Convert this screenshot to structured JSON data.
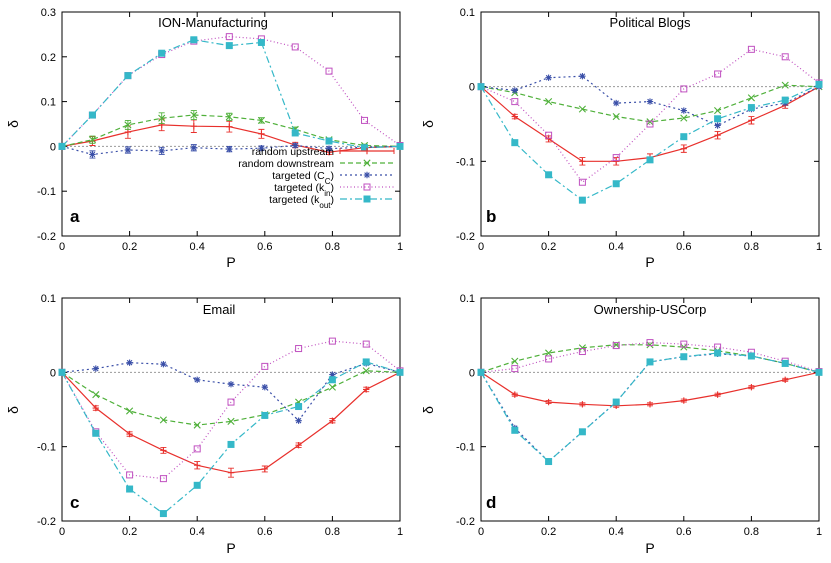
{
  "colors": {
    "random_upstream": "#e8302c",
    "random_downstream": "#4fb03a",
    "targeted_cc": "#3a4fa8",
    "targeted_kin": "#c050c0",
    "targeted_kout": "#35b8c8",
    "zero_line": "#9a9a9a"
  },
  "legend": {
    "entries": [
      {
        "key": "random_upstream",
        "label": "random upstream"
      },
      {
        "key": "random_downstream",
        "label": "random downstream"
      },
      {
        "key": "targeted_cc",
        "prefix": "targeted (C",
        "sub": "C",
        "suffix": ")"
      },
      {
        "key": "targeted_kin",
        "prefix": "targeted (k",
        "sub": "in",
        "suffix": ")"
      },
      {
        "key": "targeted_kout",
        "prefix": "targeted (k",
        "sub": "out",
        "suffix": ")"
      }
    ]
  },
  "chart_data": [
    {
      "type": "line",
      "letter": "a",
      "title": "ION-Manufacturing",
      "xlabel": "P",
      "ylabel": "δ",
      "xlim": [
        0,
        1
      ],
      "ylim": [
        -0.2,
        0.3
      ],
      "xticks": [
        "0",
        "0.2",
        "0.4",
        "0.6",
        "0.8",
        "1"
      ],
      "xtick_values": [
        0,
        0.2,
        0.4,
        0.6,
        0.8,
        1
      ],
      "yticks": [
        "-0.2",
        "-0.1",
        "0",
        "0.1",
        "0.2",
        "0.3"
      ],
      "ytick_values": [
        -0.2,
        -0.1,
        0,
        0.1,
        0.2,
        0.3
      ],
      "series": [
        {
          "key": "random_upstream",
          "name": "random upstream",
          "x": [
            0,
            0.09,
            0.195,
            0.295,
            0.39,
            0.495,
            0.59,
            0.69,
            0.79,
            0.895,
            1
          ],
          "y": [
            0,
            0.012,
            0.032,
            0.048,
            0.045,
            0.044,
            0.028,
            0.003,
            -0.013,
            -0.003,
            0
          ],
          "err": [
            0,
            0.01,
            0.014,
            0.013,
            0.014,
            0.012,
            0.01,
            0.006,
            0.005,
            0.004,
            0
          ]
        },
        {
          "key": "random_downstream",
          "name": "random downstream",
          "x": [
            0,
            0.09,
            0.195,
            0.295,
            0.39,
            0.495,
            0.59,
            0.69,
            0.79,
            0.895,
            1
          ],
          "y": [
            0,
            0.015,
            0.048,
            0.063,
            0.07,
            0.066,
            0.058,
            0.038,
            0.015,
            0.002,
            0
          ],
          "err": [
            0,
            0.008,
            0.01,
            0.012,
            0.01,
            0.008,
            0.006,
            0.005,
            0.004,
            0.003,
            0
          ]
        },
        {
          "key": "targeted_cc",
          "name": "targeted (Cc)",
          "x": [
            0,
            0.09,
            0.195,
            0.295,
            0.39,
            0.495,
            0.59,
            0.69,
            0.79,
            0.895,
            1
          ],
          "y": [
            0,
            -0.018,
            -0.008,
            -0.01,
            -0.003,
            -0.006,
            -0.004,
            0.002,
            -0.005,
            -0.002,
            0
          ],
          "err": [
            0,
            0.008,
            0.007,
            0.008,
            0.007,
            0.006,
            0.005,
            0.004,
            0.004,
            0.003,
            0
          ]
        },
        {
          "key": "targeted_kin",
          "name": "targeted (kin)",
          "x": [
            0,
            0.09,
            0.195,
            0.295,
            0.39,
            0.495,
            0.59,
            0.69,
            0.79,
            0.895,
            1
          ],
          "y": [
            0,
            0.07,
            0.158,
            0.205,
            0.235,
            0.245,
            0.24,
            0.222,
            0.168,
            0.058,
            0.002
          ],
          "err": null
        },
        {
          "key": "targeted_kout",
          "name": "targeted (kout)",
          "x": [
            0,
            0.09,
            0.195,
            0.295,
            0.39,
            0.495,
            0.59,
            0.69,
            0.79,
            0.895,
            1
          ],
          "y": [
            0,
            0.07,
            0.158,
            0.208,
            0.238,
            0.225,
            0.232,
            0.03,
            0.012,
            -0.003,
            0
          ],
          "err": null
        }
      ]
    },
    {
      "type": "line",
      "letter": "b",
      "title": "Political Blogs",
      "xlabel": "P",
      "ylabel": "δ",
      "xlim": [
        0,
        1
      ],
      "ylim": [
        -0.2,
        0.1
      ],
      "xticks": [
        "0",
        "0.2",
        "0.4",
        "0.6",
        "0.8",
        "1"
      ],
      "xtick_values": [
        0,
        0.2,
        0.4,
        0.6,
        0.8,
        1
      ],
      "yticks": [
        "-0.2",
        "-0.1",
        "0",
        "0.1"
      ],
      "ytick_values": [
        -0.2,
        -0.1,
        0,
        0.1
      ],
      "series": [
        {
          "key": "random_upstream",
          "name": "random upstream",
          "x": [
            0,
            0.1,
            0.2,
            0.3,
            0.4,
            0.5,
            0.6,
            0.7,
            0.8,
            0.9,
            1
          ],
          "y": [
            0,
            -0.04,
            -0.07,
            -0.1,
            -0.1,
            -0.095,
            -0.083,
            -0.065,
            -0.045,
            -0.025,
            0
          ],
          "err": [
            0,
            0.003,
            0.004,
            0.005,
            0.005,
            0.005,
            0.005,
            0.005,
            0.005,
            0.004,
            0
          ]
        },
        {
          "key": "random_downstream",
          "name": "random downstream",
          "x": [
            0,
            0.1,
            0.2,
            0.3,
            0.4,
            0.5,
            0.6,
            0.7,
            0.8,
            0.9,
            1
          ],
          "y": [
            0,
            -0.008,
            -0.02,
            -0.03,
            -0.04,
            -0.047,
            -0.042,
            -0.032,
            -0.015,
            0.002,
            0
          ],
          "err": null
        },
        {
          "key": "targeted_cc",
          "name": "targeted (Cc)",
          "x": [
            0,
            0.1,
            0.2,
            0.3,
            0.4,
            0.5,
            0.6,
            0.7,
            0.8,
            0.9,
            1
          ],
          "y": [
            0,
            -0.005,
            0.012,
            0.014,
            -0.022,
            -0.02,
            -0.032,
            -0.052,
            -0.03,
            -0.022,
            0
          ],
          "err": null
        },
        {
          "key": "targeted_kin",
          "name": "targeted (kin)",
          "x": [
            0,
            0.1,
            0.2,
            0.3,
            0.4,
            0.5,
            0.6,
            0.7,
            0.8,
            0.9,
            1
          ],
          "y": [
            0,
            -0.02,
            -0.065,
            -0.128,
            -0.095,
            -0.05,
            -0.003,
            0.017,
            0.05,
            0.04,
            0.005
          ],
          "err": null
        },
        {
          "key": "targeted_kout",
          "name": "targeted (kout)",
          "x": [
            0,
            0.1,
            0.2,
            0.3,
            0.4,
            0.5,
            0.6,
            0.7,
            0.8,
            0.9,
            1
          ],
          "y": [
            0,
            -0.075,
            -0.118,
            -0.152,
            -0.13,
            -0.098,
            -0.067,
            -0.043,
            -0.028,
            -0.018,
            0.003
          ],
          "err": null
        }
      ]
    },
    {
      "type": "line",
      "letter": "c",
      "title": "Email",
      "xlabel": "P",
      "ylabel": "δ",
      "xlim": [
        0,
        1
      ],
      "ylim": [
        -0.2,
        0.1
      ],
      "xticks": [
        "0",
        "0.2",
        "0.4",
        "0.6",
        "0.8",
        "1"
      ],
      "xtick_values": [
        0,
        0.2,
        0.4,
        0.6,
        0.8,
        1
      ],
      "yticks": [
        "-0.2",
        "-0.1",
        "0",
        "0.1"
      ],
      "ytick_values": [
        -0.2,
        -0.1,
        0,
        0.1
      ],
      "series": [
        {
          "key": "random_upstream",
          "name": "random upstream",
          "x": [
            0,
            0.1,
            0.2,
            0.3,
            0.4,
            0.5,
            0.6,
            0.7,
            0.8,
            0.9,
            1
          ],
          "y": [
            0,
            -0.048,
            -0.083,
            -0.105,
            -0.125,
            -0.135,
            -0.13,
            -0.098,
            -0.065,
            -0.023,
            0
          ],
          "err": [
            0,
            0.003,
            0.003,
            0.004,
            0.005,
            0.006,
            0.004,
            0.003,
            0.003,
            0.003,
            0
          ]
        },
        {
          "key": "random_downstream",
          "name": "random downstream",
          "x": [
            0,
            0.1,
            0.2,
            0.3,
            0.4,
            0.5,
            0.6,
            0.7,
            0.8,
            0.9,
            1
          ],
          "y": [
            0,
            -0.03,
            -0.052,
            -0.064,
            -0.071,
            -0.066,
            -0.057,
            -0.04,
            -0.02,
            0.002,
            0
          ],
          "err": null
        },
        {
          "key": "targeted_cc",
          "name": "targeted (Cc)",
          "x": [
            0,
            0.1,
            0.2,
            0.3,
            0.4,
            0.5,
            0.6,
            0.7,
            0.8,
            0.9,
            1
          ],
          "y": [
            0,
            0.005,
            0.013,
            0.011,
            -0.01,
            -0.016,
            -0.02,
            -0.065,
            -0.003,
            0.012,
            0
          ],
          "err": null
        },
        {
          "key": "targeted_kin",
          "name": "targeted (kin)",
          "x": [
            0,
            0.1,
            0.2,
            0.3,
            0.4,
            0.5,
            0.6,
            0.7,
            0.8,
            0.9,
            1
          ],
          "y": [
            0,
            -0.08,
            -0.138,
            -0.143,
            -0.103,
            -0.04,
            0.008,
            0.032,
            0.042,
            0.038,
            0.002
          ],
          "err": null
        },
        {
          "key": "targeted_kout",
          "name": "targeted (kout)",
          "x": [
            0,
            0.1,
            0.2,
            0.3,
            0.4,
            0.5,
            0.6,
            0.7,
            0.8,
            0.9,
            1
          ],
          "y": [
            0,
            -0.082,
            -0.157,
            -0.19,
            -0.152,
            -0.097,
            -0.058,
            -0.046,
            -0.01,
            0.014,
            0
          ],
          "err": null
        }
      ]
    },
    {
      "type": "line",
      "letter": "d",
      "title": "Ownership-USCorp",
      "xlabel": "P",
      "ylabel": "δ",
      "xlim": [
        0,
        1
      ],
      "ylim": [
        -0.2,
        0.1
      ],
      "xticks": [
        "0",
        "0.2",
        "0.4",
        "0.6",
        "0.8",
        "1"
      ],
      "xtick_values": [
        0,
        0.2,
        0.4,
        0.6,
        0.8,
        1
      ],
      "yticks": [
        "-0.2",
        "-0.1",
        "0",
        "0.1"
      ],
      "ytick_values": [
        -0.2,
        -0.1,
        0,
        0.1
      ],
      "series": [
        {
          "key": "random_upstream",
          "name": "random upstream",
          "x": [
            0,
            0.1,
            0.2,
            0.3,
            0.4,
            0.5,
            0.6,
            0.7,
            0.8,
            0.9,
            1
          ],
          "y": [
            0,
            -0.03,
            -0.04,
            -0.043,
            -0.045,
            -0.043,
            -0.038,
            -0.03,
            -0.02,
            -0.01,
            0
          ],
          "err": [
            0,
            0.002,
            0.002,
            0.002,
            0.002,
            0.002,
            0.002,
            0.002,
            0.002,
            0.002,
            0
          ]
        },
        {
          "key": "random_downstream",
          "name": "random downstream",
          "x": [
            0,
            0.1,
            0.2,
            0.3,
            0.4,
            0.5,
            0.6,
            0.7,
            0.8,
            0.9,
            1
          ],
          "y": [
            0,
            0.015,
            0.026,
            0.033,
            0.037,
            0.037,
            0.034,
            0.029,
            0.022,
            0.012,
            0
          ],
          "err": null
        },
        {
          "key": "targeted_cc",
          "name": "targeted (Cc)",
          "x": [
            0,
            0.1,
            0.2,
            0.3,
            0.4,
            0.5,
            0.6,
            0.7,
            0.8,
            0.9,
            1
          ],
          "y": [
            0,
            -0.075,
            -0.12,
            -0.08,
            -0.04,
            0.014,
            0.021,
            0.025,
            0.022,
            0.012,
            0
          ],
          "err": null
        },
        {
          "key": "targeted_kin",
          "name": "targeted (kin)",
          "x": [
            0,
            0.1,
            0.2,
            0.3,
            0.4,
            0.5,
            0.6,
            0.7,
            0.8,
            0.9,
            1
          ],
          "y": [
            0,
            0.005,
            0.018,
            0.028,
            0.036,
            0.04,
            0.038,
            0.034,
            0.027,
            0.015,
            0.001
          ],
          "err": null
        },
        {
          "key": "targeted_kout",
          "name": "targeted (kout)",
          "x": [
            0,
            0.1,
            0.2,
            0.3,
            0.4,
            0.5,
            0.6,
            0.7,
            0.8,
            0.9,
            1
          ],
          "y": [
            0,
            -0.078,
            -0.12,
            -0.08,
            -0.04,
            0.014,
            0.021,
            0.026,
            0.022,
            0.012,
            0
          ],
          "err": null
        }
      ]
    }
  ]
}
